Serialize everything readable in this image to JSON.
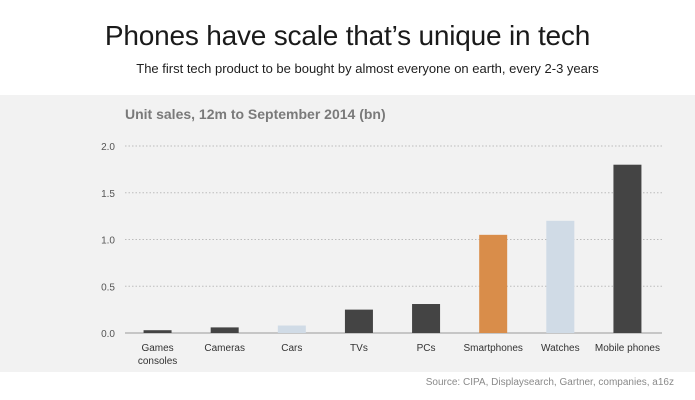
{
  "header": {
    "title": "Phones have scale that’s unique in tech",
    "subtitle": "The first tech product to be bought by almost everyone on earth, every 2-3 years"
  },
  "source": "Source: CIPA, Displaysearch, Gartner, companies, a16z",
  "colors": {
    "default_bar": "#444444",
    "highlight_bar": "#d98d4a",
    "light_bar": "#d0dbe6",
    "grid": "#bcbcbc",
    "panel": "#f2f2f2"
  },
  "chart_data": {
    "type": "bar",
    "title": "Unit sales, 12m to September 2014 (bn)",
    "xlabel": "",
    "ylabel": "",
    "ylim": [
      0,
      2.0
    ],
    "yticks": [
      "0.0",
      "0.5",
      "1.0",
      "1.5",
      "2.0"
    ],
    "grid": true,
    "categories": [
      [
        "Games",
        "consoles"
      ],
      [
        "Cameras"
      ],
      [
        "Cars"
      ],
      [
        "TVs"
      ],
      [
        "PCs"
      ],
      [
        "Smartphones"
      ],
      [
        "Watches"
      ],
      [
        "Mobile phones"
      ]
    ],
    "values": [
      0.03,
      0.06,
      0.08,
      0.25,
      0.31,
      1.05,
      1.2,
      1.8
    ],
    "bar_colors": [
      "#444444",
      "#444444",
      "#d0dbe6",
      "#444444",
      "#444444",
      "#d98d4a",
      "#d0dbe6",
      "#444444"
    ]
  }
}
